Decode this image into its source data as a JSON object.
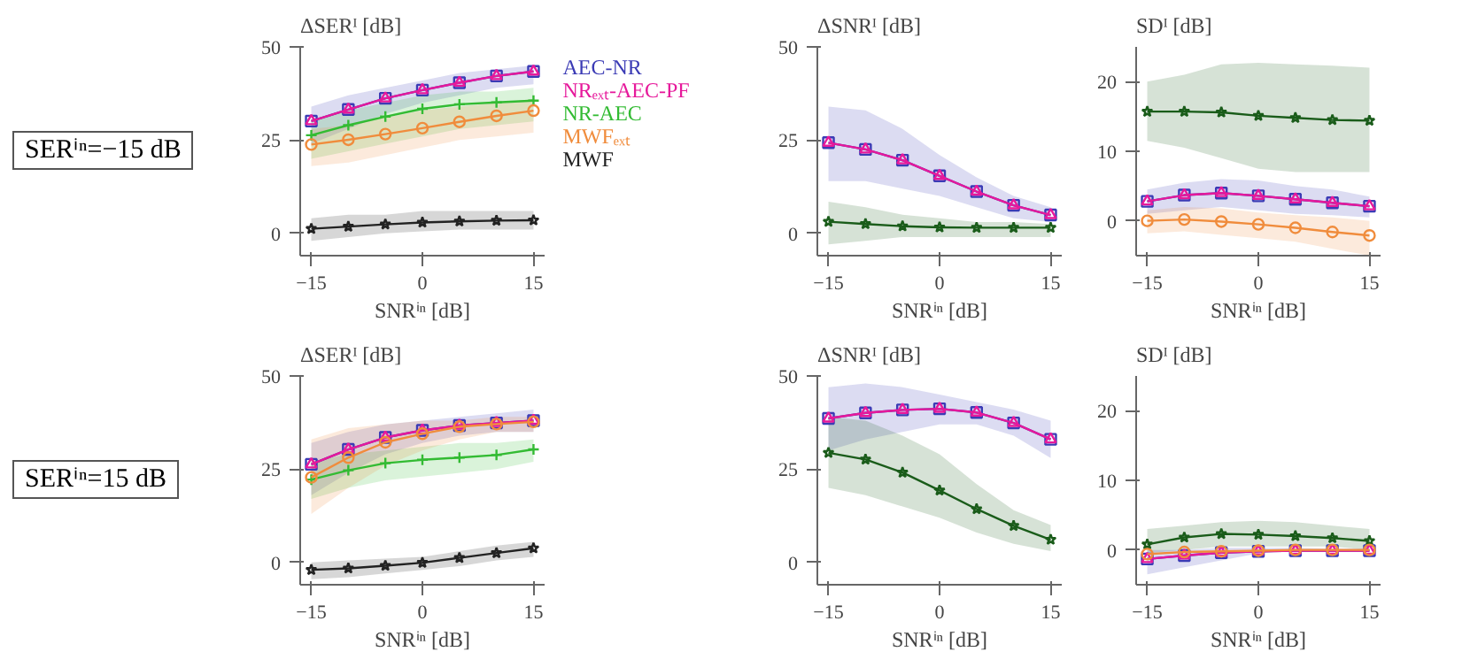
{
  "chart_data": [
    {
      "type": "line",
      "ylabel": "ΔSERᴵ [dB]",
      "xlabel": "SNRⁱⁿ [dB]",
      "annotations": [
        "SERⁱⁿ=−15 dB"
      ],
      "x": [
        -15,
        -10,
        -5,
        0,
        5,
        10,
        15
      ],
      "xlim": [
        -16.5,
        16.5
      ],
      "ylim": [
        -6,
        50
      ],
      "xticks": [
        -15,
        0,
        15
      ],
      "yticks": [
        0,
        25,
        50
      ],
      "legend": "right",
      "series": [
        {
          "name": "AEC-NR",
          "color": "#3b3bb5",
          "marker": "square",
          "values": [
            30.1,
            33.2,
            36.2,
            38.4,
            40.4,
            42.2,
            43.4
          ],
          "lower": [
            24,
            28,
            32,
            35,
            37,
            39,
            40
          ],
          "upper": [
            34,
            37,
            39,
            41,
            43,
            44,
            45
          ]
        },
        {
          "name": "NRₑₓₜ-AEC-PF",
          "color": "#e6199b",
          "marker": "triangle",
          "values": [
            30.1,
            33.2,
            36.2,
            38.4,
            40.4,
            42.2,
            43.4
          ]
        },
        {
          "name": "NR-AEC",
          "color": "#33bb33",
          "marker": "cross",
          "values": [
            26.3,
            29.0,
            31.3,
            33.4,
            34.6,
            35.1,
            35.6
          ],
          "lower": [
            20,
            22,
            24,
            26,
            28,
            29,
            30
          ],
          "upper": [
            30,
            33,
            35,
            37,
            38,
            38,
            39
          ]
        },
        {
          "name": "MWFₑₓₜ",
          "color": "#f08c3c",
          "marker": "circle",
          "values": [
            23.8,
            25.1,
            26.6,
            28.2,
            29.9,
            31.5,
            32.9
          ],
          "lower": [
            18,
            19,
            21,
            23,
            25,
            26,
            27
          ],
          "upper": [
            28,
            29,
            31,
            33,
            34,
            35,
            36
          ]
        },
        {
          "name": "MWF",
          "color": "#222222",
          "marker": "star",
          "values": [
            1.2,
            1.8,
            2.4,
            2.9,
            3.2,
            3.4,
            3.5
          ],
          "lower": [
            -2,
            -1,
            0,
            0.5,
            1,
            1,
            1
          ],
          "upper": [
            4,
            5,
            5,
            6,
            6,
            6,
            6
          ]
        }
      ]
    },
    {
      "type": "line",
      "ylabel": "ΔSNRᴵ [dB]",
      "xlabel": "SNRⁱⁿ [dB]",
      "x": [
        -15,
        -10,
        -5,
        0,
        5,
        10,
        15
      ],
      "xlim": [
        -16.5,
        16.5
      ],
      "ylim": [
        -6,
        50
      ],
      "xticks": [
        -15,
        0,
        15
      ],
      "yticks": [
        0,
        25,
        50
      ],
      "series": [
        {
          "color": "#3b3bb5",
          "marker": "square",
          "values": [
            24.3,
            22.5,
            19.6,
            15.4,
            11.2,
            7.5,
            4.9
          ],
          "lower": [
            14,
            14,
            12,
            10,
            7,
            4,
            3
          ],
          "upper": [
            34,
            33,
            28,
            21,
            15,
            10,
            7
          ]
        },
        {
          "color": "#e6199b",
          "marker": "triangle",
          "values": [
            24.3,
            22.5,
            19.6,
            15.4,
            11.2,
            7.5,
            4.9
          ]
        },
        {
          "color": "#1a5c1a",
          "marker": "star",
          "values": [
            3.1,
            2.5,
            1.9,
            1.6,
            1.5,
            1.5,
            1.5
          ],
          "lower": [
            -3,
            -2,
            -1,
            -1,
            -1,
            -1,
            -1
          ],
          "upper": [
            8.5,
            7,
            5,
            4,
            3,
            3,
            2.5
          ]
        }
      ]
    },
    {
      "type": "line",
      "ylabel": "SDᴵ [dB]",
      "xlabel": "SNRⁱⁿ [dB]",
      "x": [
        -15,
        -10,
        -5,
        0,
        5,
        10,
        15
      ],
      "xlim": [
        -16.5,
        16.5
      ],
      "ylim": [
        -5,
        25
      ],
      "xticks": [
        -15,
        0,
        15
      ],
      "yticks": [
        0,
        10,
        20
      ],
      "series": [
        {
          "color": "#1a5c1a",
          "marker": "star",
          "values": [
            15.7,
            15.7,
            15.6,
            15.1,
            14.8,
            14.5,
            14.4
          ],
          "lower": [
            11.5,
            10.5,
            9,
            7.5,
            7,
            7,
            7
          ],
          "upper": [
            20,
            21,
            22.5,
            22.7,
            22.5,
            22.3,
            22
          ]
        },
        {
          "color": "#3b3bb5",
          "marker": "square",
          "values": [
            2.8,
            3.7,
            4.0,
            3.6,
            3.1,
            2.6,
            2.1
          ],
          "lower": [
            1,
            1.5,
            2,
            1.5,
            1,
            0.8,
            0.5
          ],
          "upper": [
            4.5,
            5.5,
            6,
            5.8,
            5,
            4.5,
            3.5
          ]
        },
        {
          "color": "#e6199b",
          "marker": "triangle",
          "values": [
            2.8,
            3.7,
            4.0,
            3.6,
            3.1,
            2.6,
            2.1
          ]
        },
        {
          "color": "#f08c3c",
          "marker": "circle",
          "values": [
            0,
            0.2,
            -0.1,
            -0.5,
            -1.0,
            -1.6,
            -2.1
          ],
          "lower": [
            -1.8,
            -1.5,
            -2,
            -2.5,
            -3,
            -4,
            -5
          ],
          "upper": [
            1.5,
            2,
            1.8,
            1.2,
            0.8,
            0.5,
            0
          ]
        }
      ]
    },
    {
      "type": "line",
      "ylabel": "ΔSERᴵ [dB]",
      "xlabel": "SNRⁱⁿ [dB]",
      "annotations": [
        "SERⁱⁿ=15 dB"
      ],
      "x": [
        -15,
        -10,
        -5,
        0,
        5,
        10,
        15
      ],
      "xlim": [
        -16.5,
        16.5
      ],
      "ylim": [
        -6,
        50
      ],
      "xticks": [
        -15,
        0,
        15
      ],
      "yticks": [
        0,
        25,
        50
      ],
      "series": [
        {
          "color": "#3b3bb5",
          "marker": "square",
          "values": [
            26.3,
            30.3,
            33.5,
            35.4,
            36.7,
            37.4,
            38.0
          ],
          "lower": [
            18,
            24,
            29,
            32,
            34,
            35,
            35
          ],
          "upper": [
            32,
            35,
            37,
            38,
            39,
            40,
            41
          ]
        },
        {
          "color": "#e6199b",
          "marker": "triangle",
          "values": [
            26.3,
            30.3,
            33.5,
            35.4,
            36.7,
            37.4,
            38.0
          ]
        },
        {
          "color": "#33bb33",
          "marker": "cross",
          "values": [
            22.2,
            24.7,
            26.6,
            27.5,
            28.1,
            28.8,
            30.3
          ],
          "lower": [
            17,
            20,
            22,
            23,
            24,
            25,
            27
          ],
          "upper": [
            27,
            29,
            30,
            31,
            32,
            32,
            33
          ]
        },
        {
          "color": "#f08c3c",
          "marker": "circle",
          "values": [
            22.8,
            28.1,
            32.2,
            34.5,
            36.4,
            37.1,
            37.7
          ],
          "lower": [
            13,
            20,
            26,
            30,
            33,
            35,
            35
          ],
          "upper": [
            33,
            36,
            37,
            38,
            38,
            39,
            39
          ]
        },
        {
          "color": "#222222",
          "marker": "star",
          "values": [
            -2.0,
            -1.6,
            -0.9,
            -0.1,
            1.2,
            2.5,
            3.8
          ],
          "lower": [
            -4.5,
            -4,
            -3,
            -2,
            -1,
            0.5,
            1.5
          ],
          "upper": [
            0,
            0.5,
            1,
            1.5,
            3,
            4.5,
            5.5
          ]
        }
      ]
    },
    {
      "type": "line",
      "ylabel": "ΔSNRᴵ [dB]",
      "xlabel": "SNRⁱⁿ [dB]",
      "x": [
        -15,
        -10,
        -5,
        0,
        5,
        10,
        15
      ],
      "xlim": [
        -16.5,
        16.5
      ],
      "ylim": [
        -6,
        50
      ],
      "xticks": [
        -15,
        0,
        15
      ],
      "yticks": [
        0,
        25,
        50
      ],
      "series": [
        {
          "color": "#3b3bb5",
          "marker": "square",
          "values": [
            38.6,
            40.1,
            40.9,
            41.2,
            40.2,
            37.4,
            33.0
          ],
          "lower": [
            30,
            33,
            35,
            37,
            37,
            34,
            28
          ],
          "upper": [
            47,
            48,
            47,
            45,
            43,
            41,
            38
          ]
        },
        {
          "color": "#e6199b",
          "marker": "triangle",
          "values": [
            38.6,
            40.1,
            40.9,
            41.2,
            40.2,
            37.4,
            33.0
          ]
        },
        {
          "color": "#1a5c1a",
          "marker": "star",
          "values": [
            29.4,
            27.6,
            24.1,
            19.3,
            14.3,
            9.8,
            6.1
          ],
          "lower": [
            20,
            18,
            15,
            12,
            8,
            5,
            3
          ],
          "upper": [
            39,
            38,
            34,
            29,
            21,
            14,
            10
          ]
        }
      ]
    },
    {
      "type": "line",
      "ylabel": "SDᴵ [dB]",
      "xlabel": "SNRⁱⁿ [dB]",
      "x": [
        -15,
        -10,
        -5,
        0,
        5,
        10,
        15
      ],
      "xlim": [
        -16.5,
        16.5
      ],
      "ylim": [
        -5,
        25
      ],
      "xticks": [
        -15,
        0,
        15
      ],
      "yticks": [
        0,
        10,
        20
      ],
      "series": [
        {
          "color": "#1a5c1a",
          "marker": "star",
          "values": [
            0.8,
            1.8,
            2.3,
            2.2,
            2.0,
            1.7,
            1.3
          ],
          "lower": [
            -0.5,
            0,
            0.5,
            0.5,
            0.5,
            0.5,
            0
          ],
          "upper": [
            3,
            3.5,
            4,
            4.2,
            4,
            3.5,
            3
          ]
        },
        {
          "color": "#3b3bb5",
          "marker": "square",
          "values": [
            -1.3,
            -0.8,
            -0.4,
            -0.2,
            -0.1,
            -0.1,
            -0.1
          ],
          "lower": [
            -3.5,
            -2.5,
            -1.5,
            -0.5,
            0,
            0,
            0
          ],
          "upper": [
            0,
            0,
            0.3,
            0.3,
            0.3,
            0.2,
            0.2
          ]
        },
        {
          "color": "#e6199b",
          "marker": "triangle",
          "values": [
            -1.3,
            -0.8,
            -0.4,
            -0.2,
            -0.1,
            -0.1,
            -0.1
          ]
        },
        {
          "color": "#f08c3c",
          "marker": "circle",
          "values": [
            -0.6,
            -0.3,
            -0.2,
            -0.1,
            0,
            0,
            0
          ]
        }
      ]
    }
  ]
}
